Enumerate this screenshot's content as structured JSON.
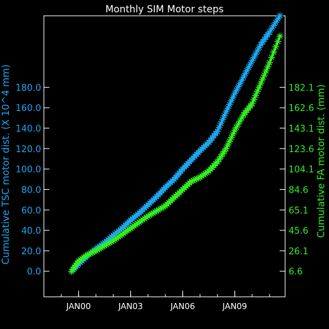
{
  "chart_data": {
    "type": "line",
    "title": "Monthly SIM Motor steps",
    "ylabel_left": "Cumulative TSC motor dist. (X 10^4 mm)",
    "ylabel_right": "Cumulative FA motor dist. (mm)",
    "xlabel": "",
    "x_ticks": [
      "JAN00",
      "JAN03",
      "JAN06",
      "JAN09"
    ],
    "x_tick_years": [
      2000,
      2003,
      2006,
      2009
    ],
    "xlim": [
      1998.0,
      2011.9
    ],
    "y_left_ticks": [
      "0.0",
      "20.0",
      "40.0",
      "60.0",
      "80.0",
      "100.0",
      "120.0",
      "140.0",
      "160.0",
      "180.0"
    ],
    "y_left_values": [
      0,
      20,
      40,
      60,
      80,
      100,
      120,
      140,
      160,
      180
    ],
    "ylim_left": [
      -25,
      250
    ],
    "y_right_ticks": [
      "6.6",
      "26.1",
      "45.6",
      "65.1",
      "84.6",
      "104.1",
      "123.6",
      "143.1",
      "162.6",
      "182.1"
    ],
    "y_right_values": [
      6.6,
      26.1,
      45.6,
      65.1,
      84.6,
      104.1,
      123.6,
      143.1,
      162.6,
      182.1
    ],
    "colors": {
      "tsc": "#1ea7f0",
      "fa": "#33ee22",
      "axes": "#ffffff",
      "background": "#000000"
    },
    "series": [
      {
        "key": "tsc",
        "axis": "left",
        "x": [
          1999.6,
          2000.0,
          2000.5,
          2001.0,
          2001.5,
          2002.0,
          2002.5,
          2003.0,
          2003.5,
          2004.0,
          2004.5,
          2005.0,
          2005.5,
          2006.0,
          2006.5,
          2007.0,
          2007.5,
          2008.0,
          2008.5,
          2009.0,
          2009.5,
          2010.0,
          2010.5,
          2011.0,
          2011.6
        ],
        "values": [
          0,
          7,
          15,
          22,
          28,
          35,
          42,
          50,
          57,
          65,
          73,
          82,
          90,
          100,
          109,
          118,
          126,
          137,
          156,
          174,
          190,
          206,
          222,
          234,
          250
        ]
      },
      {
        "key": "fa",
        "axis": "left",
        "x": [
          1999.6,
          2000.0,
          2000.5,
          2001.0,
          2001.5,
          2002.0,
          2002.5,
          2003.0,
          2003.5,
          2004.0,
          2004.5,
          2005.0,
          2005.5,
          2006.0,
          2006.5,
          2007.0,
          2007.5,
          2008.0,
          2008.5,
          2009.0,
          2009.5,
          2010.0,
          2010.5,
          2011.0,
          2011.6
        ],
        "values": [
          0,
          10,
          16,
          20,
          25,
          30,
          36,
          42,
          48,
          54,
          59,
          64,
          72,
          80,
          88,
          92,
          98,
          107,
          120,
          138,
          153,
          164,
          184,
          204,
          230
        ]
      }
    ]
  }
}
